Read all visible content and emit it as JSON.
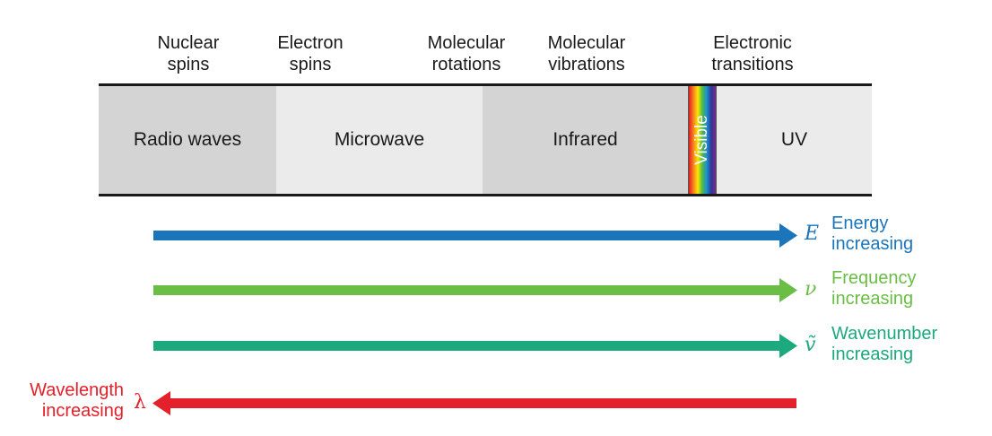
{
  "processes": [
    {
      "line1": "Nuclear",
      "line2": "spins"
    },
    {
      "line1": "Electron",
      "line2": "spins"
    },
    {
      "line1": "Molecular",
      "line2": "rotations"
    },
    {
      "line1": "Molecular",
      "line2": "vibrations"
    },
    {
      "line1": "Electronic",
      "line2": "transitions"
    }
  ],
  "regions": [
    {
      "label": "Radio waves",
      "color": "#d4d4d4"
    },
    {
      "label": "Microwave",
      "color": "#ebebeb"
    },
    {
      "label": "Infrared",
      "color": "#d4d4d4"
    },
    {
      "label": "Visible"
    },
    {
      "label": "UV",
      "color": "#ebebeb"
    }
  ],
  "arrows": [
    {
      "symbol": "E",
      "line1": "Energy",
      "line2": "increasing",
      "color": "#1b75bb",
      "direction": "right"
    },
    {
      "symbol": "ν",
      "line1": "Frequency",
      "line2": "increasing",
      "color": "#6abd45",
      "direction": "right"
    },
    {
      "symbol": "ṽ",
      "line1": "Wavenumber",
      "line2": "increasing",
      "color": "#1ba97d",
      "direction": "right"
    },
    {
      "symbol": "λ",
      "line1": "Wavelength",
      "line2": "increasing",
      "color": "#e4202a",
      "direction": "left"
    }
  ]
}
